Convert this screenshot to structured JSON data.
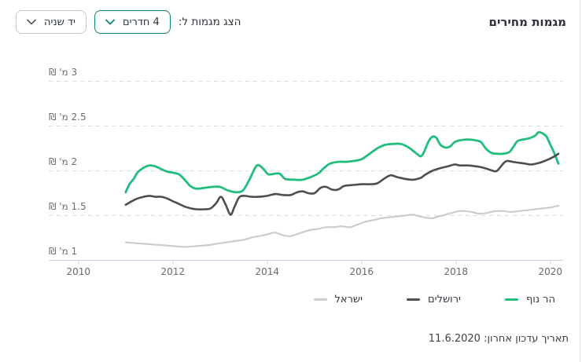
{
  "title": "מגמות מחירים",
  "controls": {
    "label": "הצג מגמות ל:",
    "rooms_dropdown": {
      "value": "4 חדרים"
    },
    "condition_dropdown": {
      "value": "יד שניה"
    }
  },
  "footer": {
    "label": "תאריך עדכון אחרון:",
    "date": "11.6.2020"
  },
  "ui_colors": {
    "accent_teal": "#0b8672",
    "gray_border": "#c7c7cc",
    "title_text": "#2d2f3b",
    "axis_label_text": "#66696f"
  },
  "chart_data": {
    "type": "line",
    "title": "",
    "xlabel": "",
    "ylabel": "",
    "grid": "dashed-horizontal",
    "legend_position": "bottom-right",
    "xlim": [
      2009.37,
      2020.27
    ],
    "ylim": [
      1.0,
      3.0
    ],
    "x_ticks": [
      2010,
      2012,
      2014,
      2016,
      2018,
      2020
    ],
    "y_ticks": [
      {
        "value": 1,
        "label": "1 מ' ₪"
      },
      {
        "value": 1.5,
        "label": "1.5 מ' ₪"
      },
      {
        "value": 2,
        "label": "2 מ' ₪"
      },
      {
        "value": 2.5,
        "label": "2.5 מ' ₪"
      },
      {
        "value": 3,
        "label": "3 מ' ₪"
      }
    ],
    "colors": {
      "grid": "#dcdcdc",
      "axis": "#ccd6eb"
    },
    "series": [
      {
        "name": "הר נוף",
        "color": "#21bd7d",
        "width": 2.8,
        "points": [
          [
            2011.0,
            1.76
          ],
          [
            2011.08,
            1.85
          ],
          [
            2011.17,
            1.91
          ],
          [
            2011.25,
            1.98
          ],
          [
            2011.37,
            2.03
          ],
          [
            2011.5,
            2.06
          ],
          [
            2011.63,
            2.05
          ],
          [
            2011.75,
            2.02
          ],
          [
            2011.88,
            1.99
          ],
          [
            2012.0,
            1.98
          ],
          [
            2012.13,
            1.96
          ],
          [
            2012.25,
            1.9
          ],
          [
            2012.37,
            1.83
          ],
          [
            2012.5,
            1.8
          ],
          [
            2012.67,
            1.81
          ],
          [
            2012.83,
            1.82
          ],
          [
            2013.0,
            1.82
          ],
          [
            2013.17,
            1.78
          ],
          [
            2013.37,
            1.76
          ],
          [
            2013.5,
            1.79
          ],
          [
            2013.63,
            1.91
          ],
          [
            2013.78,
            2.06
          ],
          [
            2013.92,
            2.02
          ],
          [
            2014.03,
            1.96
          ],
          [
            2014.25,
            1.97
          ],
          [
            2014.38,
            1.91
          ],
          [
            2014.58,
            1.9
          ],
          [
            2014.75,
            1.9
          ],
          [
            2014.92,
            1.93
          ],
          [
            2015.08,
            1.97
          ],
          [
            2015.2,
            2.03
          ],
          [
            2015.33,
            2.08
          ],
          [
            2015.5,
            2.1
          ],
          [
            2015.67,
            2.1
          ],
          [
            2015.83,
            2.11
          ],
          [
            2016.0,
            2.13
          ],
          [
            2016.17,
            2.19
          ],
          [
            2016.33,
            2.25
          ],
          [
            2016.5,
            2.29
          ],
          [
            2016.67,
            2.3
          ],
          [
            2016.83,
            2.3
          ],
          [
            2017.0,
            2.26
          ],
          [
            2017.17,
            2.19
          ],
          [
            2017.28,
            2.17
          ],
          [
            2017.42,
            2.33
          ],
          [
            2017.5,
            2.38
          ],
          [
            2017.58,
            2.37
          ],
          [
            2017.67,
            2.29
          ],
          [
            2017.78,
            2.26
          ],
          [
            2017.87,
            2.27
          ],
          [
            2017.97,
            2.32
          ],
          [
            2018.08,
            2.34
          ],
          [
            2018.25,
            2.35
          ],
          [
            2018.42,
            2.34
          ],
          [
            2018.53,
            2.32
          ],
          [
            2018.63,
            2.25
          ],
          [
            2018.75,
            2.2
          ],
          [
            2018.87,
            2.19
          ],
          [
            2019.0,
            2.19
          ],
          [
            2019.13,
            2.21
          ],
          [
            2019.22,
            2.27
          ],
          [
            2019.3,
            2.33
          ],
          [
            2019.42,
            2.35
          ],
          [
            2019.53,
            2.36
          ],
          [
            2019.67,
            2.39
          ],
          [
            2019.75,
            2.43
          ],
          [
            2019.83,
            2.42
          ],
          [
            2019.92,
            2.38
          ],
          [
            2020.0,
            2.29
          ],
          [
            2020.08,
            2.2
          ],
          [
            2020.17,
            2.08
          ]
        ]
      },
      {
        "name": "ירושלים",
        "color": "#4e4e50",
        "width": 2.6,
        "points": [
          [
            2011.0,
            1.62
          ],
          [
            2011.13,
            1.66
          ],
          [
            2011.25,
            1.69
          ],
          [
            2011.38,
            1.71
          ],
          [
            2011.5,
            1.72
          ],
          [
            2011.63,
            1.71
          ],
          [
            2011.75,
            1.71
          ],
          [
            2011.88,
            1.69
          ],
          [
            2012.0,
            1.66
          ],
          [
            2012.13,
            1.63
          ],
          [
            2012.25,
            1.6
          ],
          [
            2012.38,
            1.58
          ],
          [
            2012.5,
            1.57
          ],
          [
            2012.67,
            1.57
          ],
          [
            2012.8,
            1.58
          ],
          [
            2012.92,
            1.64
          ],
          [
            2013.02,
            1.71
          ],
          [
            2013.12,
            1.62
          ],
          [
            2013.22,
            1.51
          ],
          [
            2013.3,
            1.59
          ],
          [
            2013.4,
            1.7
          ],
          [
            2013.5,
            1.72
          ],
          [
            2013.67,
            1.71
          ],
          [
            2013.83,
            1.71
          ],
          [
            2014.0,
            1.72
          ],
          [
            2014.17,
            1.74
          ],
          [
            2014.33,
            1.73
          ],
          [
            2014.5,
            1.73
          ],
          [
            2014.63,
            1.76
          ],
          [
            2014.75,
            1.77
          ],
          [
            2014.87,
            1.75
          ],
          [
            2015.0,
            1.75
          ],
          [
            2015.13,
            1.81
          ],
          [
            2015.25,
            1.82
          ],
          [
            2015.37,
            1.79
          ],
          [
            2015.5,
            1.79
          ],
          [
            2015.63,
            1.83
          ],
          [
            2015.8,
            1.84
          ],
          [
            2016.0,
            1.85
          ],
          [
            2016.17,
            1.85
          ],
          [
            2016.33,
            1.86
          ],
          [
            2016.5,
            1.92
          ],
          [
            2016.62,
            1.95
          ],
          [
            2016.75,
            1.93
          ],
          [
            2016.92,
            1.91
          ],
          [
            2017.08,
            1.9
          ],
          [
            2017.25,
            1.92
          ],
          [
            2017.33,
            1.95
          ],
          [
            2017.5,
            2.0
          ],
          [
            2017.67,
            2.03
          ],
          [
            2017.83,
            2.05
          ],
          [
            2017.97,
            2.07
          ],
          [
            2018.08,
            2.06
          ],
          [
            2018.25,
            2.06
          ],
          [
            2018.42,
            2.05
          ],
          [
            2018.53,
            2.04
          ],
          [
            2018.67,
            2.02
          ],
          [
            2018.78,
            2.0
          ],
          [
            2018.87,
            2.0
          ],
          [
            2019.0,
            2.08
          ],
          [
            2019.08,
            2.11
          ],
          [
            2019.2,
            2.1
          ],
          [
            2019.33,
            2.09
          ],
          [
            2019.47,
            2.08
          ],
          [
            2019.58,
            2.07
          ],
          [
            2019.7,
            2.08
          ],
          [
            2019.83,
            2.1
          ],
          [
            2019.97,
            2.13
          ],
          [
            2020.08,
            2.16
          ],
          [
            2020.17,
            2.19
          ]
        ]
      },
      {
        "name": "ישראל",
        "color": "#cccccc",
        "width": 2.2,
        "points": [
          [
            2011.0,
            1.2
          ],
          [
            2011.25,
            1.19
          ],
          [
            2011.5,
            1.18
          ],
          [
            2011.75,
            1.17
          ],
          [
            2012.0,
            1.16
          ],
          [
            2012.25,
            1.15
          ],
          [
            2012.5,
            1.16
          ],
          [
            2012.75,
            1.17
          ],
          [
            2013.0,
            1.19
          ],
          [
            2013.25,
            1.21
          ],
          [
            2013.5,
            1.23
          ],
          [
            2013.7,
            1.26
          ],
          [
            2013.83,
            1.27
          ],
          [
            2014.0,
            1.29
          ],
          [
            2014.17,
            1.31
          ],
          [
            2014.33,
            1.28
          ],
          [
            2014.5,
            1.27
          ],
          [
            2014.67,
            1.3
          ],
          [
            2014.92,
            1.34
          ],
          [
            2015.08,
            1.35
          ],
          [
            2015.25,
            1.37
          ],
          [
            2015.42,
            1.37
          ],
          [
            2015.58,
            1.38
          ],
          [
            2015.75,
            1.37
          ],
          [
            2015.92,
            1.4
          ],
          [
            2016.08,
            1.43
          ],
          [
            2016.25,
            1.45
          ],
          [
            2016.42,
            1.47
          ],
          [
            2016.58,
            1.48
          ],
          [
            2016.75,
            1.49
          ],
          [
            2016.92,
            1.5
          ],
          [
            2017.08,
            1.51
          ],
          [
            2017.17,
            1.5
          ],
          [
            2017.33,
            1.48
          ],
          [
            2017.5,
            1.47
          ],
          [
            2017.63,
            1.49
          ],
          [
            2017.78,
            1.51
          ],
          [
            2017.92,
            1.53
          ],
          [
            2018.05,
            1.55
          ],
          [
            2018.17,
            1.55
          ],
          [
            2018.33,
            1.54
          ],
          [
            2018.5,
            1.52
          ],
          [
            2018.67,
            1.53
          ],
          [
            2018.83,
            1.55
          ],
          [
            2019.0,
            1.55
          ],
          [
            2019.17,
            1.54
          ],
          [
            2019.33,
            1.55
          ],
          [
            2019.5,
            1.56
          ],
          [
            2019.67,
            1.57
          ],
          [
            2019.83,
            1.58
          ],
          [
            2020.0,
            1.59
          ],
          [
            2020.17,
            1.61
          ]
        ]
      }
    ]
  }
}
